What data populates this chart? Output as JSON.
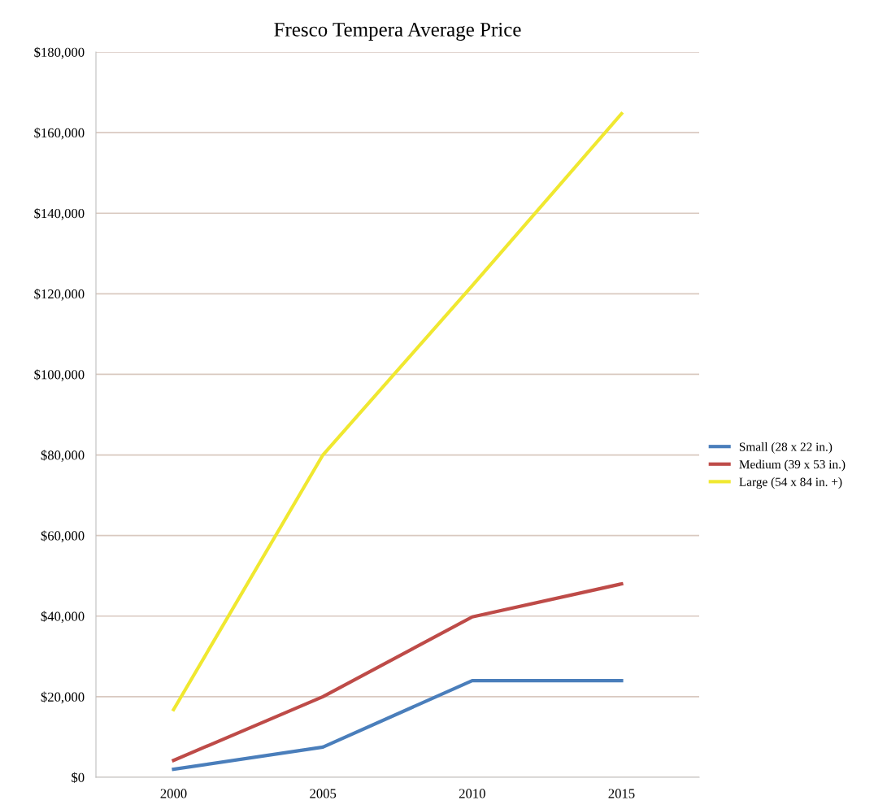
{
  "chart_data": {
    "type": "line",
    "title": "Fresco Tempera Average Price",
    "categories": [
      "2000",
      "2005",
      "2010",
      "2015"
    ],
    "series": [
      {
        "name": "Small (28 x 22 in.)",
        "color": "#4a7ebb",
        "values": [
          2000,
          7500,
          24000,
          24000
        ]
      },
      {
        "name": "Medium (39 x 53 in.)",
        "color": "#be4b48",
        "values": [
          4200,
          20000,
          39800,
          48000
        ]
      },
      {
        "name": "Large (54 x 84 in. +)",
        "color": "#f0e830",
        "values": [
          16800,
          80000,
          122000,
          164700
        ]
      }
    ],
    "ylim": [
      0,
      180000
    ],
    "yticks": [
      {
        "value": 0,
        "label": "$0"
      },
      {
        "value": 20000,
        "label": "$20,000"
      },
      {
        "value": 40000,
        "label": "$40,000"
      },
      {
        "value": 60000,
        "label": "$60,000"
      },
      {
        "value": 80000,
        "label": "$80,000"
      },
      {
        "value": 100000,
        "label": "$100,000"
      },
      {
        "value": 120000,
        "label": "$120,000"
      },
      {
        "value": 140000,
        "label": "$140,000"
      },
      {
        "value": 160000,
        "label": "$160,000"
      },
      {
        "value": 180000,
        "label": "$180,000"
      }
    ],
    "grid": "y",
    "legend": "right",
    "marker": "none",
    "line_style": "solid"
  }
}
